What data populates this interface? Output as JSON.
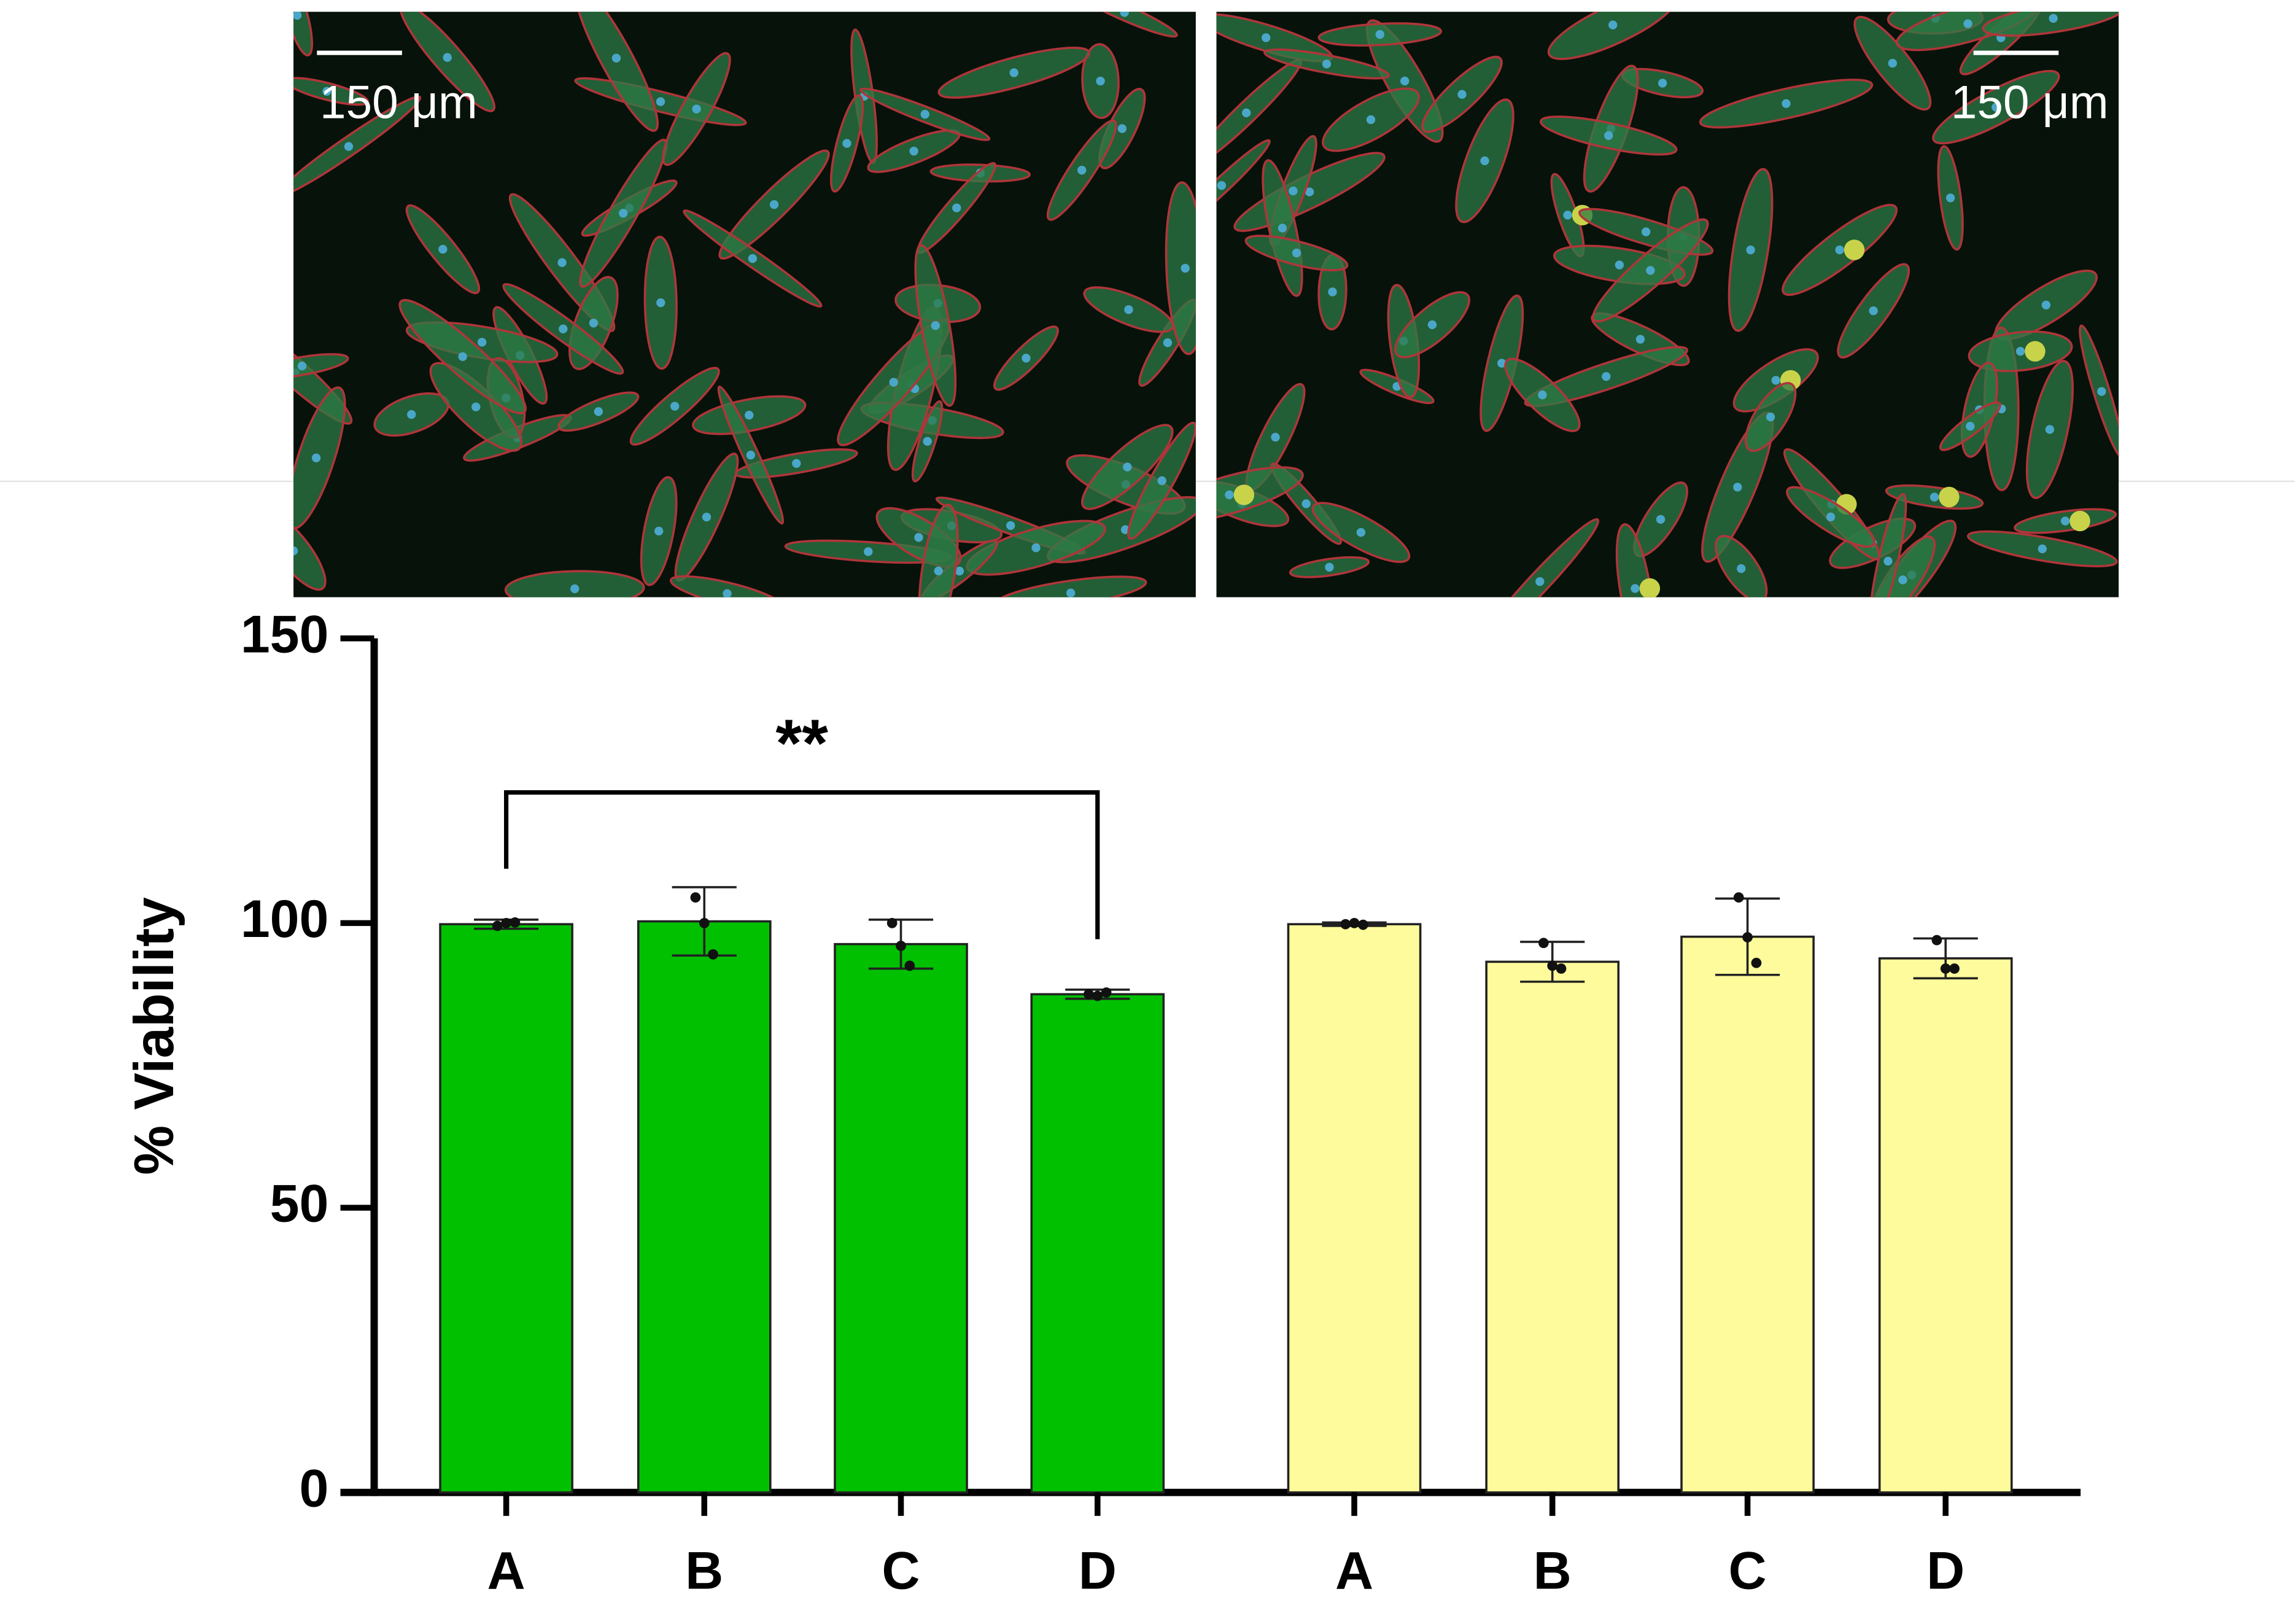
{
  "chart_data": {
    "type": "bar",
    "ylabel": "% Viability",
    "categories": [
      "A",
      "B",
      "C",
      "D"
    ],
    "ylim": [
      0,
      150
    ],
    "yticks": [
      0,
      50,
      100,
      150
    ],
    "series": [
      {
        "color": "#00c000",
        "values": [
          99.8,
          100.3,
          96.3,
          87.5
        ],
        "errors": [
          0.8,
          6.0,
          4.3,
          0.8
        ],
        "points": [
          [
            99.5,
            100,
            100.1
          ],
          [
            104.5,
            100,
            94.5
          ],
          [
            100,
            96,
            92.5
          ],
          [
            87.5,
            87.2,
            87.8
          ]
        ]
      },
      {
        "color": "#fdfb9b",
        "values": [
          99.8,
          93.2,
          97.6,
          93.8
        ],
        "errors": [
          0.3,
          3.5,
          6.7,
          3.5
        ],
        "points": [
          [
            99.8,
            100,
            99.7
          ],
          [
            96.5,
            92.5,
            92
          ],
          [
            104.5,
            97.5,
            93
          ],
          [
            97,
            92,
            92
          ]
        ]
      }
    ],
    "annotation": "**",
    "scale_bars": [
      "150 μm",
      "150 μm"
    ]
  }
}
